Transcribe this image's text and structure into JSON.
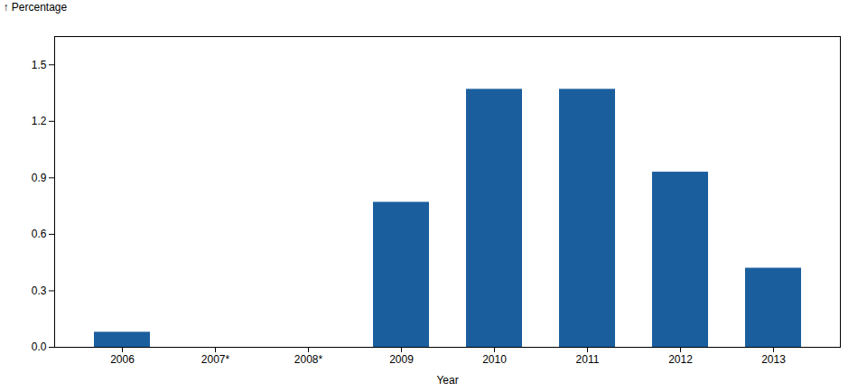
{
  "chart_data": {
    "type": "bar",
    "categories": [
      "2006",
      "2007*",
      "2008*",
      "2009",
      "2010",
      "2011",
      "2012",
      "2013"
    ],
    "values": [
      0.08,
      0.0,
      0.0,
      0.77,
      1.37,
      1.37,
      0.93,
      0.42
    ],
    "color": "#1B5E9E",
    "xlabel": "Year",
    "ylabel": "Percentage",
    "ylim": [
      0,
      1.65
    ],
    "yticks": [
      {
        "value": 0.0,
        "label": "0.0"
      },
      0.3,
      0.6,
      0.9,
      1.2,
      1.5
    ],
    "grid": false
  }
}
